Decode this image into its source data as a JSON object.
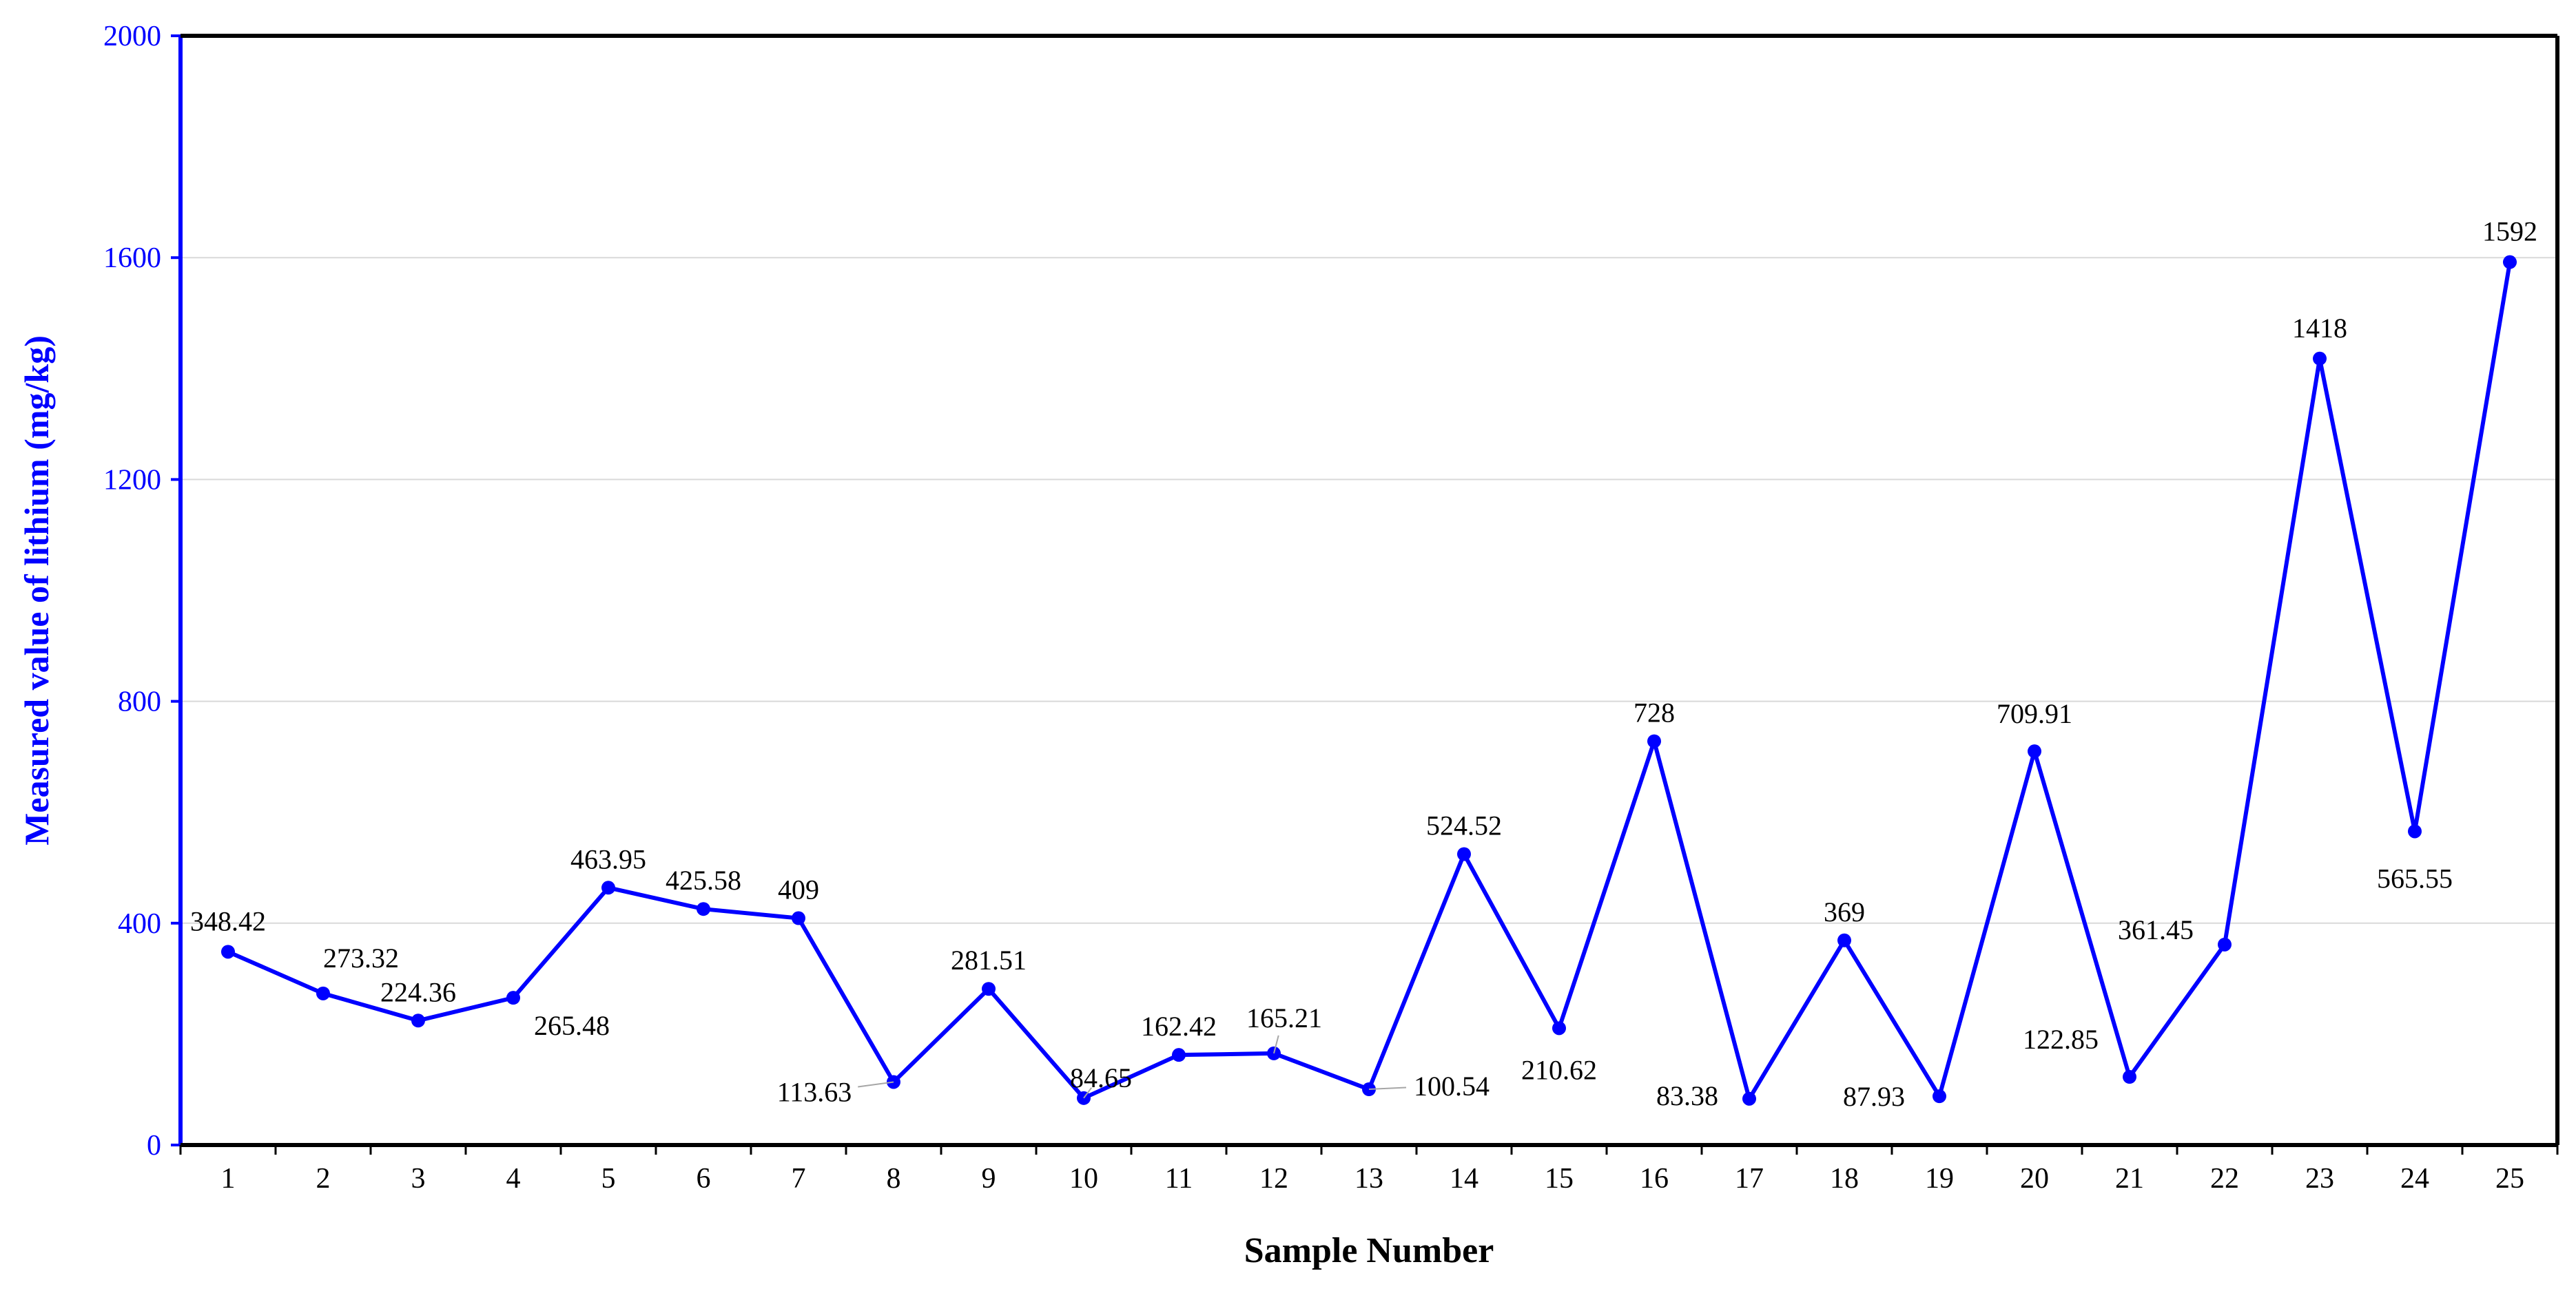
{
  "colors": {
    "series": "#0000ff",
    "axis_y": "#0000ff",
    "axis_x": "#000000",
    "grid": "#d9d9d9",
    "leader": "#a6a6a6"
  },
  "chart_data": {
    "type": "line",
    "title": "",
    "xlabel": "Sample Number",
    "ylabel": "Measured value of lithium (mg/kg)",
    "ylim": [
      0,
      2000
    ],
    "yticks": [
      0,
      400,
      800,
      1200,
      1600,
      2000
    ],
    "grid": "horizontal",
    "markers": true,
    "categories": [
      "1",
      "2",
      "3",
      "4",
      "5",
      "6",
      "7",
      "8",
      "9",
      "10",
      "11",
      "12",
      "13",
      "14",
      "15",
      "16",
      "17",
      "18",
      "19",
      "20",
      "21",
      "22",
      "23",
      "24",
      "25"
    ],
    "values": [
      348.42,
      273.32,
      224.36,
      265.48,
      463.95,
      425.58,
      409,
      113.63,
      281.51,
      84.65,
      162.42,
      165.21,
      100.54,
      524.52,
      210.62,
      728,
      83.38,
      369,
      87.93,
      709.91,
      122.85,
      361.45,
      1418,
      565.55,
      1592
    ],
    "data_labels": [
      "348.42",
      "273.32",
      "224.36",
      "265.48",
      "463.95",
      "425.58",
      "409",
      "113.63",
      "281.51",
      "84.65",
      "162.42",
      "165.21",
      "100.54",
      "524.52",
      "210.62",
      "728",
      "83.38",
      "369",
      "87.93",
      "709.91",
      "122.85",
      "361.45",
      "1418",
      "565.55",
      "1592"
    ]
  }
}
